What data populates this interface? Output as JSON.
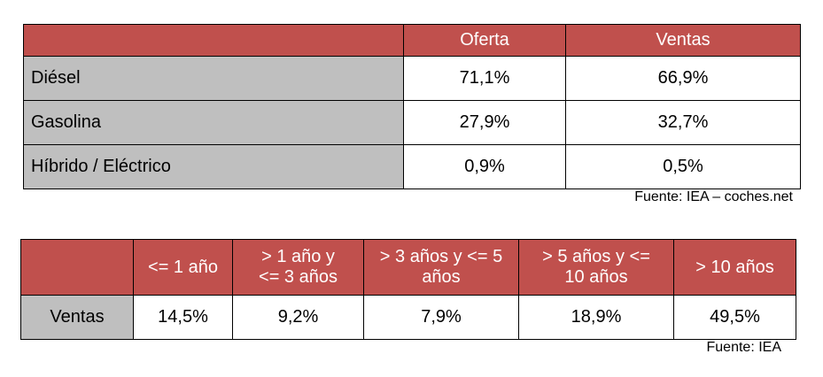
{
  "table1": {
    "headers": [
      "",
      "Oferta",
      "Ventas"
    ],
    "rows": [
      {
        "label": "Diésel",
        "oferta": "71,1%",
        "ventas": "66,9%"
      },
      {
        "label": "Gasolina",
        "oferta": "27,9%",
        "ventas": "32,7%"
      },
      {
        "label": "Híbrido / Eléctrico",
        "oferta": "0,9%",
        "ventas": "0,5%"
      }
    ],
    "source": "Fuente:  IEA – coches.net"
  },
  "table2": {
    "headers": [
      "",
      "<= 1 año",
      "> 1 año y\n<= 3 años",
      "> 3 años y <= 5\naños",
      "> 5 años y <=\n10 años",
      "> 10 años"
    ],
    "row": {
      "label": "Ventas",
      "values": [
        "14,5%",
        "9,2%",
        "7,9%",
        "18,9%",
        "49,5%"
      ]
    },
    "source": "Fuente:  IEA"
  },
  "colors": {
    "header": "#c0504d",
    "label_bg": "#bfbfbf"
  }
}
